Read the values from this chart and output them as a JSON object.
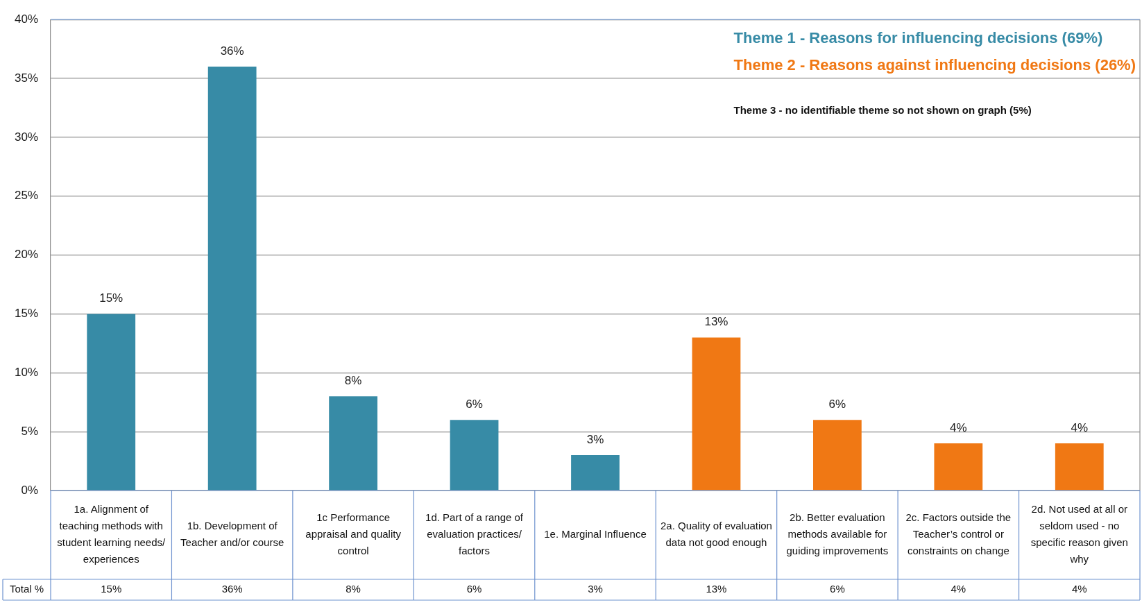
{
  "chart_data": {
    "type": "bar",
    "categories": [
      "1a. Alignment of teaching methods with student learning needs/ experiences",
      "1b. Development of Teacher and/or course",
      "1c Performance appraisal and quality control",
      "1d. Part of a range of evaluation practices/ factors",
      "1e. Marginal Influence",
      "2a. Quality of evaluation data not good enough",
      "2b. Better evaluation methods available for guiding improvements",
      "2c. Factors outside the Teacher’s control or constraints on change",
      "2d. Not used at all or seldom used - no specific reason given why"
    ],
    "series": [
      {
        "name": "Theme 1 - Reasons for influencing decisions (69%)",
        "color": "#378ba6",
        "values": [
          15,
          36,
          8,
          6,
          3,
          null,
          null,
          null,
          null
        ],
        "value_labels": [
          "15%",
          "36%",
          "8%",
          "6%",
          "3%",
          null,
          null,
          null,
          null
        ]
      },
      {
        "name": "Theme 2 - Reasons against influencing decisions (26%)",
        "color": "#f07814",
        "values": [
          null,
          null,
          null,
          null,
          null,
          13,
          6,
          4,
          4
        ],
        "value_labels": [
          null,
          null,
          null,
          null,
          null,
          "13%",
          "6%",
          "4%",
          "4%"
        ]
      }
    ],
    "ylim": [
      0,
      40
    ],
    "yticks": [
      {
        "value": 0,
        "label": "0%"
      },
      {
        "value": 5,
        "label": "5%"
      },
      {
        "value": 10,
        "label": "10%"
      },
      {
        "value": 15,
        "label": "15%"
      },
      {
        "value": 20,
        "label": "20%"
      },
      {
        "value": 25,
        "label": "25%"
      },
      {
        "value": 30,
        "label": "30%"
      },
      {
        "value": 35,
        "label": "35%"
      },
      {
        "value": 40,
        "label": "40%"
      }
    ],
    "grid": "y",
    "legend": "top right",
    "annotations": [
      "Theme 3 - no identifiable theme so not shown on graph (5%)",
      "Total %"
    ]
  }
}
